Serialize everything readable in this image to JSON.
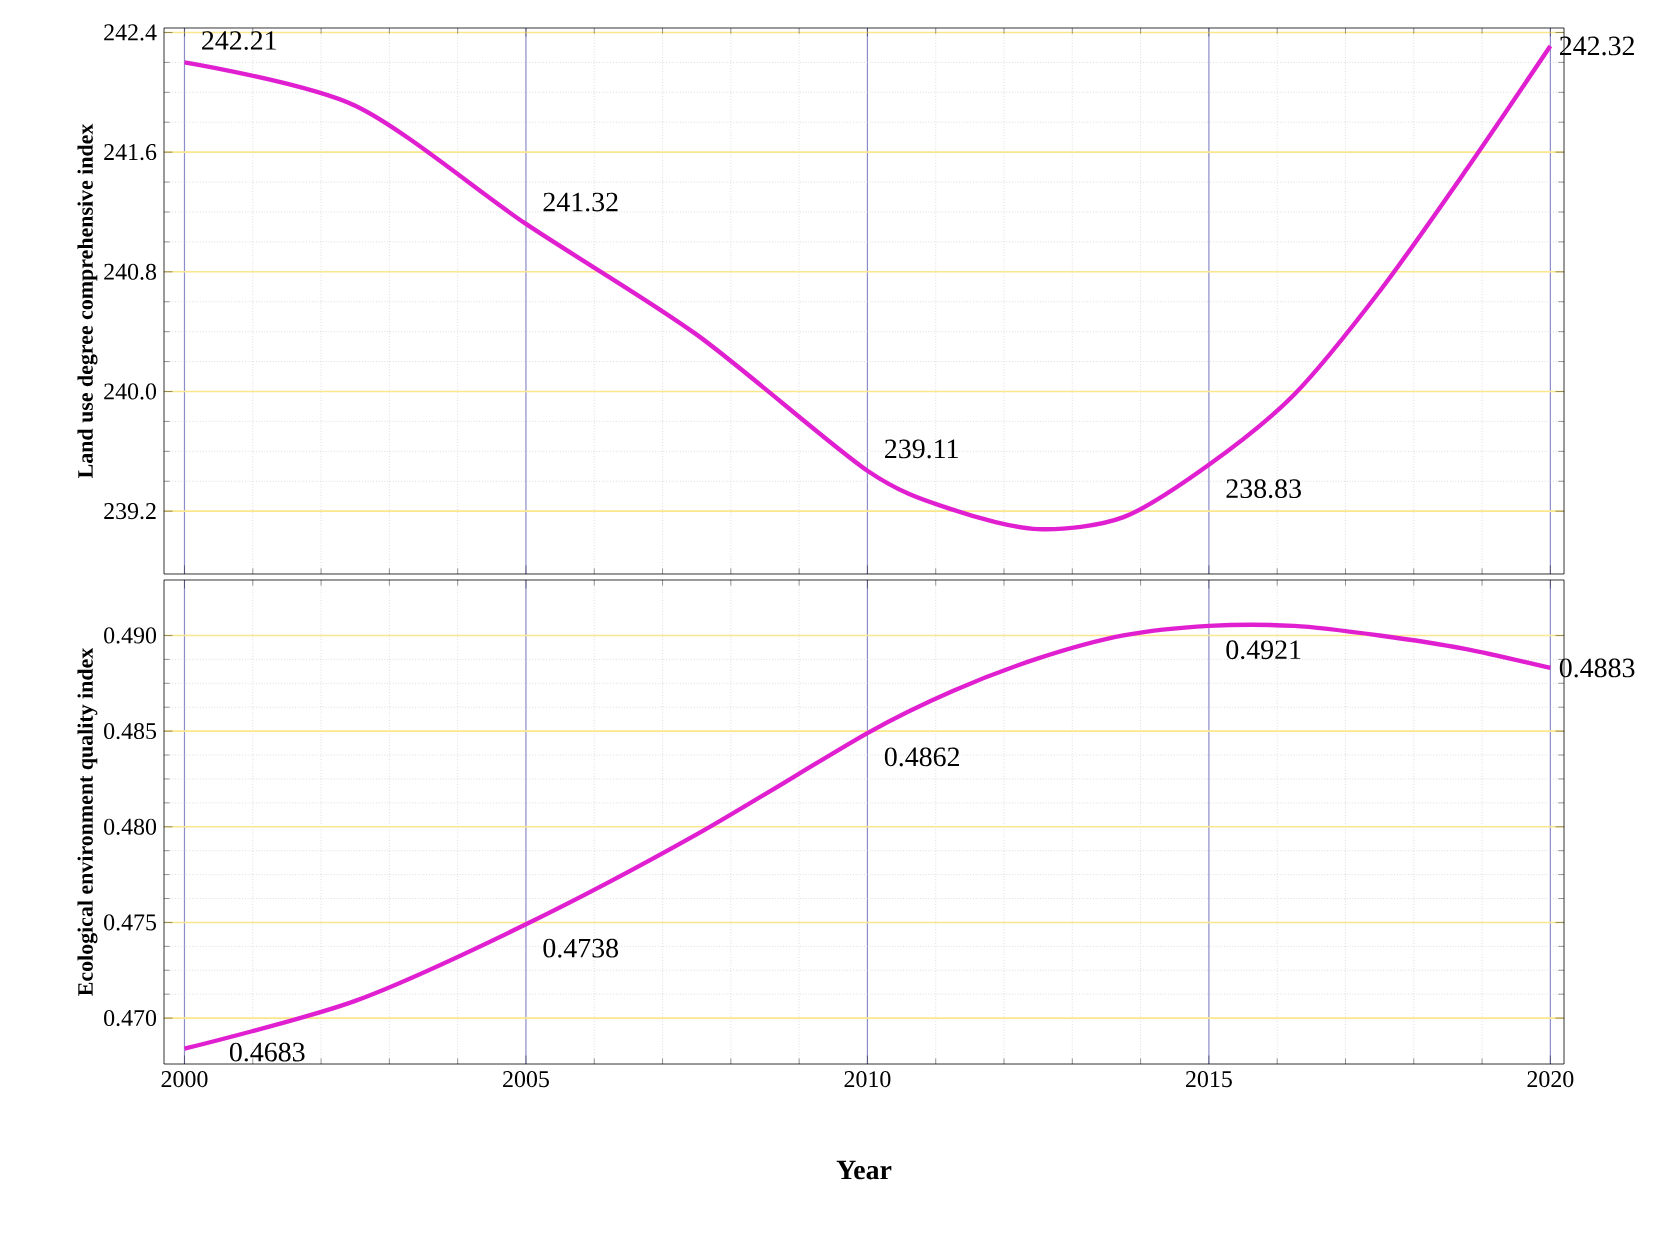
{
  "chart_data": [
    {
      "type": "line",
      "ylabel": "Land use degree comprehensive index",
      "xlim": [
        1999.7,
        2020.2
      ],
      "ylim": [
        238.78,
        242.43
      ],
      "xticks": [
        2000,
        2005,
        2010,
        2015,
        2020
      ],
      "yticks": [
        239.2,
        {
          "value": 240,
          "label": "240.0"
        },
        240.8,
        241.6,
        242.4
      ],
      "tick_labels": "y",
      "grid": true,
      "marker": "none",
      "line_style": "solid",
      "series": [
        {
          "color": "#e020d0",
          "x": [
            2000,
            2002.5,
            2005,
            2007.5,
            2010,
            2011.25,
            2012.5,
            2013.75,
            2015,
            2016.25,
            2017.5,
            2018.75,
            2020
          ],
          "values": [
            242.2,
            241.91,
            241.12,
            240.38,
            239.47,
            239.21,
            239.08,
            239.16,
            239.51,
            239.98,
            240.67,
            241.47,
            242.31
          ]
        }
      ],
      "annotations": [
        {
          "text": "242.21",
          "x": 2000,
          "y": 242.2
        },
        {
          "text": "241.32",
          "x": 2005,
          "y": 241.12
        },
        {
          "text": "239.11",
          "x": 2010,
          "y": 239.47
        },
        {
          "text": "238.83",
          "x": 2015,
          "y": 239.51
        },
        {
          "text": "242.32",
          "x": 2020,
          "y": 242.31
        }
      ]
    },
    {
      "type": "line",
      "xlabel": "Year",
      "ylabel": "Ecological environment quality index",
      "xlim": [
        1999.7,
        2020.2
      ],
      "ylim": [
        0.4676,
        0.4929
      ],
      "xticks": [
        2000,
        2005,
        2010,
        2015,
        2020
      ],
      "yticks": [
        {
          "value": 0.47,
          "label": "0.470"
        },
        {
          "value": 0.475,
          "label": "0.475"
        },
        {
          "value": 0.48,
          "label": "0.480"
        },
        {
          "value": 0.485,
          "label": "0.485"
        },
        {
          "value": 0.49,
          "label": "0.490"
        }
      ],
      "grid": true,
      "marker": "none",
      "line_style": "solid",
      "series": [
        {
          "color": "#e020d0",
          "x": [
            2000,
            2002.5,
            2005,
            2007.5,
            2010,
            2011.25,
            2012.5,
            2013.75,
            2015,
            2016.25,
            2017.5,
            2018.75,
            2020
          ],
          "values": [
            0.4684,
            0.4709,
            0.4749,
            0.4796,
            0.4849,
            0.4871,
            0.4888,
            0.49,
            0.4905,
            0.4905,
            0.49,
            0.4893,
            0.4883
          ]
        }
      ],
      "annotations": [
        {
          "text": "0.4683",
          "x": 2000,
          "y": 0.4684
        },
        {
          "text": "0.4738",
          "x": 2005,
          "y": 0.4749
        },
        {
          "text": "0.4862",
          "x": 2010,
          "y": 0.4849
        },
        {
          "text": "0.4921",
          "x": 2015,
          "y": 0.4905
        },
        {
          "text": "0.4883",
          "x": 2020,
          "y": 0.4883
        }
      ]
    }
  ]
}
